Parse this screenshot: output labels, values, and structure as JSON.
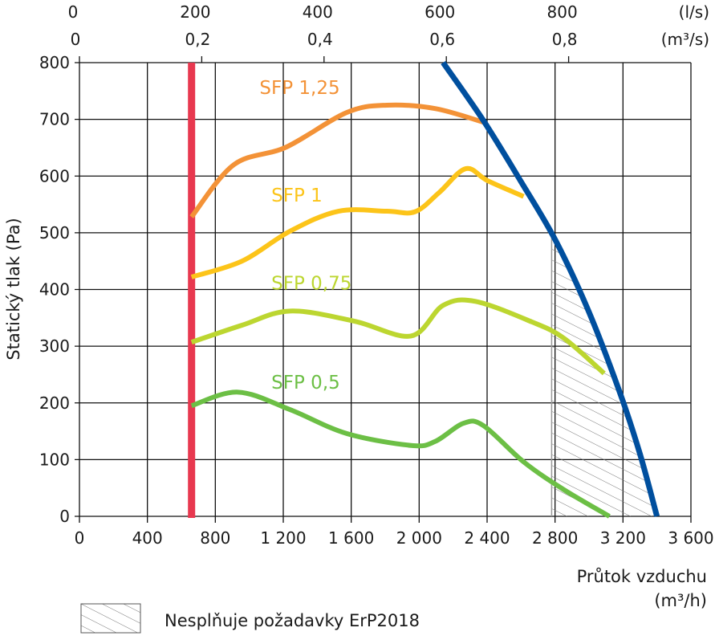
{
  "chart_data": {
    "type": "line",
    "ylabel": "Statický tlak (Pa)",
    "xlabel": "Průtok vzduchu",
    "xlabel_unit": "(m³/h)",
    "xlim": [
      0,
      3600
    ],
    "ylim": [
      0,
      800
    ],
    "grid": true,
    "x_ticks": [
      "0",
      "400",
      "800",
      "1 200",
      "1 600",
      "2 000",
      "2 400",
      "2 800",
      "3 200",
      "3 600"
    ],
    "x_tick_values": [
      0,
      400,
      800,
      1200,
      1600,
      2000,
      2400,
      2800,
      3200,
      3600
    ],
    "y_ticks": [
      "0",
      "100",
      "200",
      "300",
      "400",
      "500",
      "600",
      "700",
      "800"
    ],
    "y_tick_values": [
      0,
      100,
      200,
      300,
      400,
      500,
      600,
      700,
      800
    ],
    "top_axis_ls": {
      "unit": "(l/s)",
      "ticks": [
        "0",
        "200",
        "400",
        "600",
        "800"
      ],
      "values": [
        0,
        200,
        400,
        600,
        800
      ]
    },
    "top_axis_m3s": {
      "unit": "(m³/s)",
      "ticks": [
        "0",
        "0,2",
        "0,4",
        "0,6",
        "0,8"
      ],
      "values": [
        0,
        0.2,
        0.4,
        0.6,
        0.8
      ]
    },
    "min_flow_line": {
      "x": 660,
      "color": "#e8384f"
    },
    "series": [
      {
        "name": "SFP 1,25",
        "color": "#f39237",
        "points": [
          [
            660,
            528
          ],
          [
            909,
            620
          ],
          [
            1217,
            651
          ],
          [
            1573,
            712
          ],
          [
            1810,
            725
          ],
          [
            2094,
            719
          ],
          [
            2378,
            695
          ]
        ]
      },
      {
        "name": "SFP 1",
        "color": "#fcc419",
        "points": [
          [
            660,
            422
          ],
          [
            957,
            450
          ],
          [
            1241,
            503
          ],
          [
            1525,
            538
          ],
          [
            1810,
            538
          ],
          [
            1975,
            537
          ],
          [
            2118,
            571
          ],
          [
            2274,
            613
          ],
          [
            2402,
            592
          ],
          [
            2615,
            564
          ]
        ]
      },
      {
        "name": "SFP 0,75",
        "color": "#bcd630",
        "points": [
          [
            660,
            307
          ],
          [
            957,
            337
          ],
          [
            1241,
            362
          ],
          [
            1620,
            344
          ],
          [
            1952,
            318
          ],
          [
            2141,
            372
          ],
          [
            2331,
            379
          ],
          [
            2662,
            343
          ],
          [
            2852,
            314
          ],
          [
            3089,
            252
          ]
        ]
      },
      {
        "name": "SFP 0,5",
        "color": "#6cbf45",
        "points": [
          [
            660,
            195
          ],
          [
            933,
            219
          ],
          [
            1241,
            188
          ],
          [
            1573,
            146
          ],
          [
            1952,
            125
          ],
          [
            2094,
            132
          ],
          [
            2260,
            164
          ],
          [
            2378,
            160
          ],
          [
            2615,
            96
          ],
          [
            2852,
            47
          ],
          [
            3120,
            0
          ]
        ]
      },
      {
        "name": "",
        "color": "#004f9e",
        "points": [
          [
            2141,
            800
          ],
          [
            2378,
            698
          ],
          [
            2600,
            590
          ],
          [
            2804,
            486
          ],
          [
            3000,
            360
          ],
          [
            3183,
            217
          ],
          [
            3300,
            110
          ],
          [
            3400,
            0
          ]
        ]
      }
    ],
    "hatched_region_start_x": 2780,
    "legend": {
      "hatch_label": "Nesplňuje požadavky ErP2018",
      "placement": "bottom-left"
    }
  }
}
